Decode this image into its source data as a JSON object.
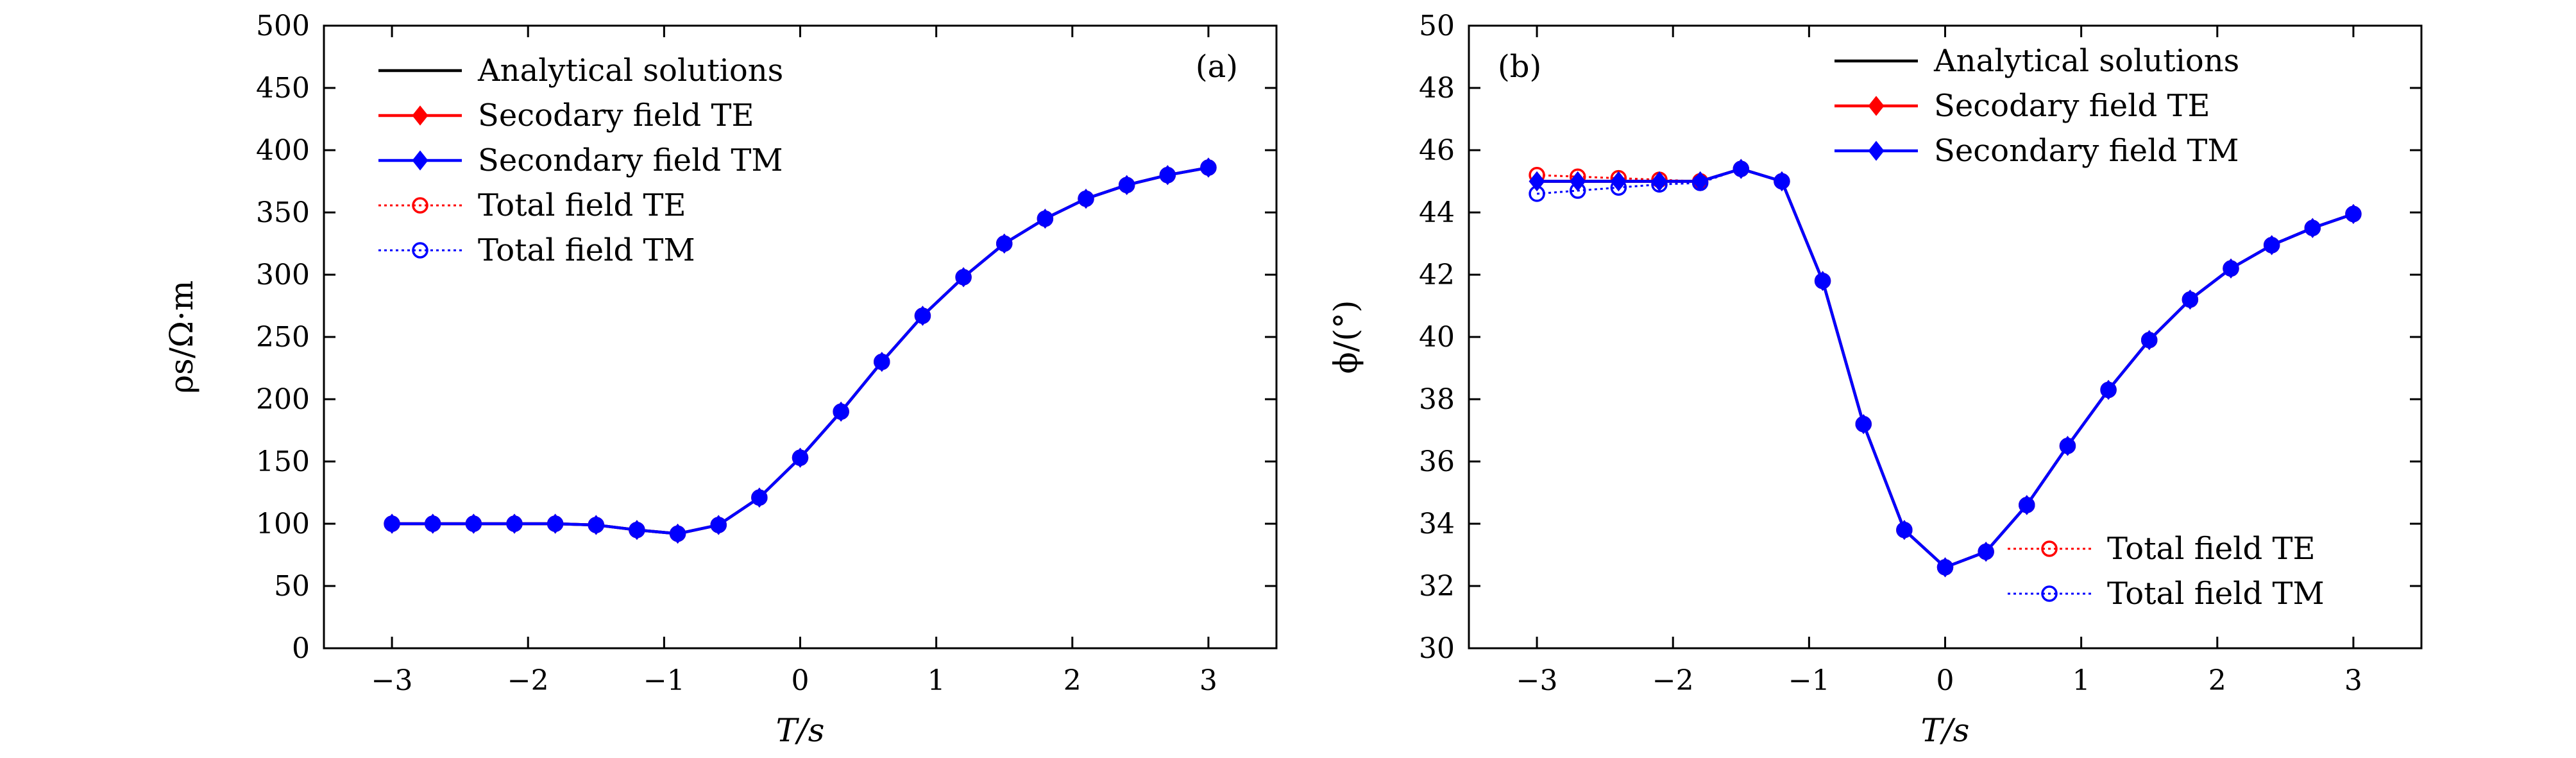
{
  "chart_data": [
    {
      "type": "line",
      "panel_label": "(a)",
      "xlabel": "T/s",
      "ylabel": "ρs/Ω·m",
      "xlim": [
        -3.5,
        3.5
      ],
      "ylim": [
        0,
        500
      ],
      "xticks": [
        -3,
        -2,
        -1,
        0,
        1,
        2,
        3
      ],
      "yticks": [
        0,
        50,
        100,
        150,
        200,
        250,
        300,
        350,
        400,
        450,
        500
      ],
      "x": [
        -3,
        -2.7,
        -2.4,
        -2.1,
        -1.8,
        -1.5,
        -1.2,
        -0.9,
        -0.6,
        -0.3,
        0,
        0.3,
        0.6,
        0.9,
        1.2,
        1.5,
        1.8,
        2.1,
        2.4,
        2.7,
        3
      ],
      "legend_position": "top-left",
      "series": [
        {
          "name": "Analytical solutions",
          "color": "#000000",
          "marker": "none",
          "style": "solid",
          "values": [
            100,
            100,
            100,
            100,
            100,
            99,
            95,
            92,
            99,
            121,
            153,
            190,
            230,
            267,
            298,
            325,
            345,
            361,
            372,
            380,
            386
          ]
        },
        {
          "name": "Secodary field TE",
          "color": "#ff0000",
          "marker": "diamond",
          "style": "solid",
          "values": [
            100,
            100,
            100,
            100,
            100,
            99,
            95,
            92,
            99,
            121,
            153,
            190,
            230,
            267,
            298,
            325,
            345,
            361,
            372,
            380,
            386
          ]
        },
        {
          "name": "Secondary field TM",
          "color": "#0000ff",
          "marker": "diamond",
          "style": "solid",
          "values": [
            100,
            100,
            100,
            100,
            100,
            99,
            95,
            92,
            99,
            121,
            153,
            190,
            230,
            267,
            298,
            325,
            345,
            361,
            372,
            380,
            386
          ]
        },
        {
          "name": "Total field TE",
          "color": "#ff0000",
          "marker": "circle",
          "style": "dotted",
          "values": [
            100,
            100,
            100,
            100,
            100,
            99,
            95,
            92,
            99,
            121,
            153,
            190,
            230,
            267,
            298,
            325,
            345,
            361,
            372,
            380,
            386
          ]
        },
        {
          "name": "Total field TM",
          "color": "#0000ff",
          "marker": "circle",
          "style": "dotted",
          "values": [
            100,
            100,
            100,
            100,
            100,
            99,
            95,
            92,
            99,
            121,
            153,
            190,
            230,
            267,
            298,
            325,
            345,
            361,
            372,
            380,
            386
          ]
        }
      ]
    },
    {
      "type": "line",
      "panel_label": "(b)",
      "xlabel": "T/s",
      "ylabel": "ϕ/(°)",
      "xlim": [
        -3.5,
        3.5
      ],
      "ylim": [
        30,
        50
      ],
      "xticks": [
        -3,
        -2,
        -1,
        0,
        1,
        2,
        3
      ],
      "yticks": [
        30,
        32,
        34,
        36,
        38,
        40,
        42,
        44,
        46,
        48,
        50
      ],
      "x": [
        -3,
        -2.7,
        -2.4,
        -2.1,
        -1.8,
        -1.5,
        -1.2,
        -0.9,
        -0.6,
        -0.3,
        0,
        0.3,
        0.6,
        0.9,
        1.2,
        1.5,
        1.8,
        2.1,
        2.4,
        2.7,
        3
      ],
      "legend_position": "top-right and bottom-right",
      "series": [
        {
          "name": "Analytical solutions",
          "color": "#000000",
          "marker": "none",
          "style": "solid",
          "values": [
            45.0,
            45.0,
            45.0,
            45.0,
            45.0,
            45.4,
            45.0,
            41.8,
            37.2,
            33.8,
            32.6,
            33.1,
            34.6,
            36.5,
            38.3,
            39.9,
            41.2,
            42.2,
            42.95,
            43.5,
            43.95
          ]
        },
        {
          "name": "Secodary field TE",
          "color": "#ff0000",
          "marker": "diamond",
          "style": "solid",
          "values": [
            45.0,
            45.0,
            45.0,
            45.0,
            45.0,
            45.4,
            45.0,
            41.8,
            37.2,
            33.8,
            32.6,
            33.1,
            34.6,
            36.5,
            38.3,
            39.9,
            41.2,
            42.2,
            42.95,
            43.5,
            43.95
          ]
        },
        {
          "name": "Secondary field TM",
          "color": "#0000ff",
          "marker": "diamond",
          "style": "solid",
          "values": [
            45.0,
            45.0,
            45.0,
            45.0,
            45.0,
            45.4,
            45.0,
            41.8,
            37.2,
            33.8,
            32.6,
            33.1,
            34.6,
            36.5,
            38.3,
            39.9,
            41.2,
            42.2,
            42.95,
            43.5,
            43.95
          ]
        },
        {
          "name": "Total field TE",
          "color": "#ff0000",
          "marker": "circle",
          "style": "dotted",
          "values": [
            45.2,
            45.15,
            45.1,
            45.05,
            45.0,
            45.4,
            45.0,
            41.8,
            37.2,
            33.8,
            32.6,
            33.1,
            34.6,
            36.5,
            38.3,
            39.9,
            41.2,
            42.2,
            42.95,
            43.5,
            43.95
          ]
        },
        {
          "name": "Total field TM",
          "color": "#0000ff",
          "marker": "circle",
          "style": "dotted",
          "values": [
            44.6,
            44.7,
            44.8,
            44.9,
            44.95,
            45.4,
            45.0,
            41.8,
            37.2,
            33.8,
            32.6,
            33.1,
            34.6,
            36.5,
            38.3,
            39.9,
            41.2,
            42.2,
            42.95,
            43.5,
            43.95
          ]
        }
      ]
    }
  ]
}
